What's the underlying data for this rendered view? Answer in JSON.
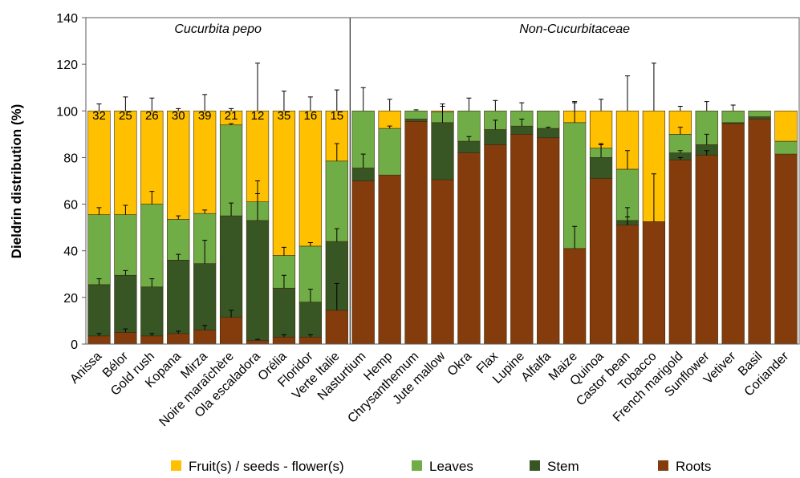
{
  "chart_data": {
    "type": "stacked_bar",
    "ylabel": "Dieldrin distribution (%)",
    "ylim": [
      0,
      140
    ],
    "yticks": [
      0,
      20,
      40,
      60,
      80,
      100,
      120,
      140
    ],
    "categories": [
      "Anissa",
      "Bélor",
      "Gold rush",
      "Kopana",
      "Mirza",
      "Noire maraîchère",
      "Ola escaladora",
      "Orélia",
      "Floridor",
      "Verte Italie",
      "Nasturtium",
      "Hemp",
      "Chrysanthemum",
      "Jute mallow",
      "Okra",
      "Flax",
      "Lupine",
      "Alfalfa",
      "Maize",
      "Quinoa",
      "Castor bean",
      "Tobacco",
      "French marigold",
      "Sunflower",
      "Vetiver",
      "Basil",
      "Coriander"
    ],
    "groups": [
      {
        "label": "Cucurbita pepo",
        "count": 10
      },
      {
        "label": "Non-Cucurbitaceae",
        "count": 17
      }
    ],
    "bar_labels": [
      32,
      25,
      26,
      30,
      39,
      21,
      12,
      35,
      16,
      15
    ],
    "series": [
      {
        "name": "Fruit(s) / seeds - flower(s)",
        "color": "#ffc000",
        "values": [
          44.5,
          44.5,
          40,
          46.5,
          44,
          6,
          39,
          62,
          58,
          21.5,
          0,
          7.5,
          0,
          0.5,
          0,
          0,
          0,
          0,
          5,
          16,
          25,
          47.5,
          10,
          0,
          0,
          0,
          13
        ],
        "errors": [
          3,
          6,
          5.5,
          1,
          7,
          1,
          20.5,
          8.5,
          6,
          9,
          null,
          5,
          null,
          3,
          null,
          null,
          null,
          null,
          4,
          5,
          15,
          20.5,
          2,
          null,
          null,
          null,
          null
        ]
      },
      {
        "name": "Leaves",
        "color": "#70ad47",
        "values": [
          30,
          26,
          35.5,
          17.5,
          21.5,
          39,
          8,
          14,
          24,
          34.5,
          24.5,
          20,
          3.5,
          4.5,
          13,
          8,
          6.5,
          7.5,
          54,
          4,
          22,
          0,
          8,
          14.5,
          5,
          2.5,
          5.5
        ],
        "errors": [
          3,
          4,
          5.5,
          1.5,
          1.5,
          0.5,
          9,
          3.5,
          1.5,
          7.5,
          10,
          1,
          0.5,
          null,
          5.5,
          4.5,
          3.5,
          null,
          8.5,
          2,
          8,
          null,
          3,
          4,
          2.5,
          null,
          null
        ]
      },
      {
        "name": "Stem",
        "color": "#375623",
        "values": [
          22,
          24.5,
          21,
          31.5,
          28.5,
          43.5,
          51.5,
          21,
          15,
          29.5,
          5.5,
          0,
          1,
          24.5,
          5,
          6.5,
          3.5,
          4,
          0,
          9,
          2,
          0,
          3,
          4.5,
          0.5,
          1,
          0
        ],
        "errors": [
          2.5,
          2,
          3.5,
          2.5,
          10,
          5.5,
          11.5,
          5.5,
          5.5,
          5.5,
          6,
          null,
          null,
          7,
          2,
          4,
          3,
          0.5,
          null,
          5.5,
          5.5,
          null,
          1,
          4.5,
          null,
          null,
          null
        ]
      },
      {
        "name": "Roots",
        "color": "#843c0c",
        "values": [
          3.5,
          5,
          3.5,
          4.5,
          6,
          11.5,
          1.5,
          3,
          3,
          14.5,
          70,
          72.5,
          95.5,
          70.5,
          82,
          85.5,
          90,
          88.5,
          41,
          71,
          51,
          52.5,
          79,
          81,
          94.5,
          96.5,
          81.5
        ],
        "errors": [
          1,
          1.5,
          1,
          1,
          2,
          3,
          0.5,
          1,
          1,
          11.5,
          null,
          null,
          null,
          null,
          null,
          null,
          null,
          null,
          9.5,
          null,
          3.5,
          20.5,
          1,
          2,
          null,
          null,
          null
        ]
      }
    ]
  }
}
